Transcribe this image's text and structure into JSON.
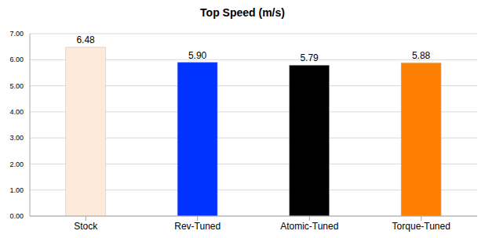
{
  "chart_data": {
    "type": "bar",
    "title": "Top Speed (m/s)",
    "categories": [
      "Stock",
      "Rev-Tuned",
      "Atomic-Tuned",
      "Torque-Tuned"
    ],
    "values": [
      6.48,
      5.9,
      5.79,
      5.88
    ],
    "value_labels": [
      "6.48",
      "5.90",
      "5.79",
      "5.88"
    ],
    "colors": [
      "#FDEADA",
      "#0033FF",
      "#000000",
      "#FF8000"
    ],
    "ylim": [
      0,
      7
    ],
    "yticks": [
      {
        "value": 0,
        "label": "0.00"
      },
      {
        "value": 1,
        "label": "1.00"
      },
      {
        "value": 2,
        "label": "2.00"
      },
      {
        "value": 3,
        "label": "3.00"
      },
      {
        "value": 4,
        "label": "4.00"
      },
      {
        "value": 5,
        "label": "5.00"
      },
      {
        "value": 6,
        "label": "6.00"
      },
      {
        "value": 7,
        "label": "7.00"
      }
    ],
    "grid": true,
    "data_labels": true
  }
}
